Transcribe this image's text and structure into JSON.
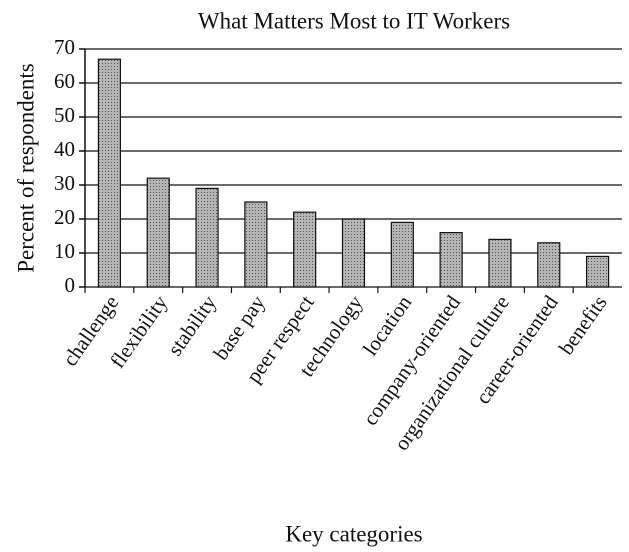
{
  "chart_data": {
    "type": "bar",
    "title": "What Matters Most to IT Workers",
    "x_label": "Key categories",
    "y_label": "Percent of respondents",
    "categories": [
      "challenge",
      "flexibility",
      "stability",
      "base pay",
      "peer respect",
      "technology",
      "location",
      "company-oriented",
      "organizational culture",
      "career-oriented",
      "benefits"
    ],
    "values": [
      67,
      32,
      29,
      25,
      22,
      20,
      19,
      16,
      14,
      13,
      9
    ],
    "color": "#9a9a9a",
    "ylim": [
      0,
      70
    ],
    "yticks": [
      0,
      10,
      20,
      30,
      40,
      50,
      60,
      70
    ],
    "grid": true
  }
}
